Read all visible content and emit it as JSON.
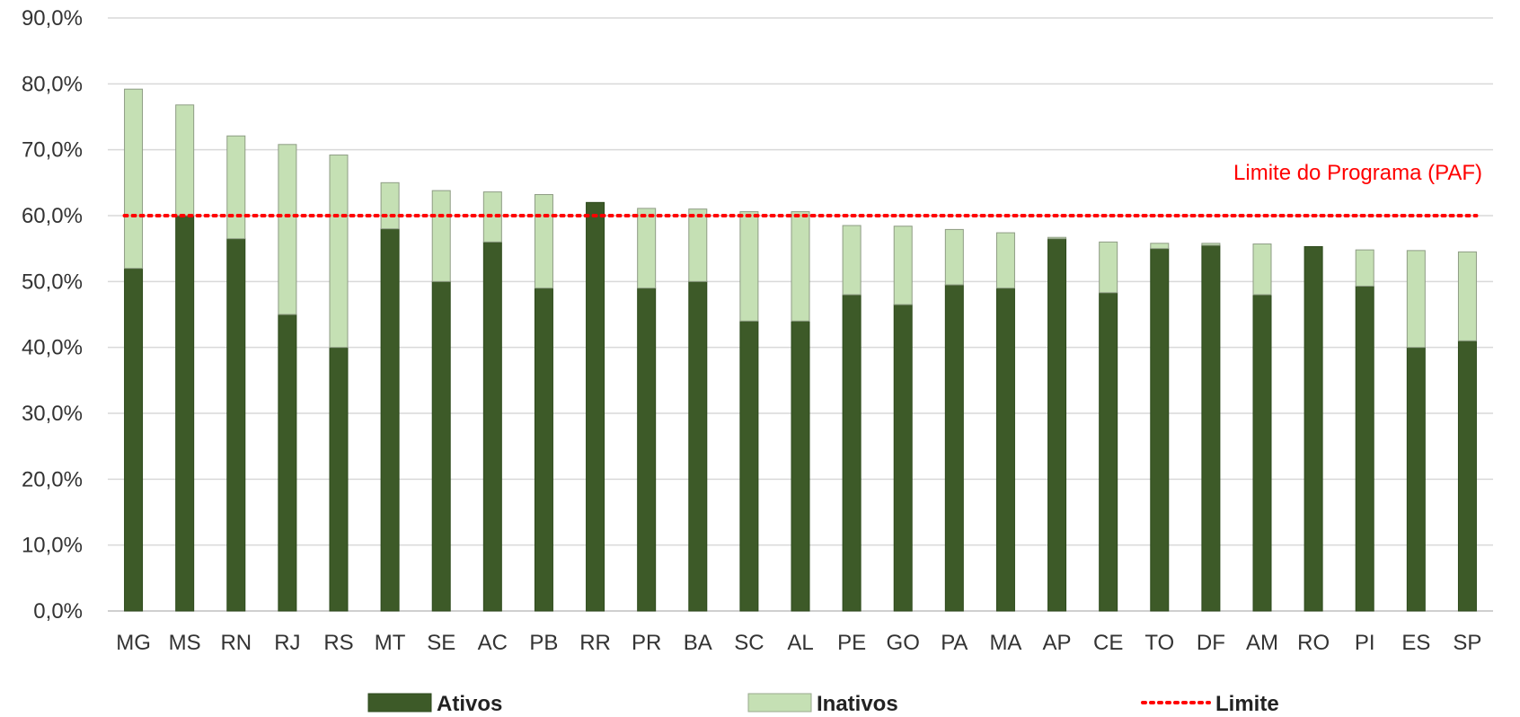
{
  "chart_data": {
    "type": "bar",
    "stacked": true,
    "categories": [
      "MG",
      "MS",
      "RN",
      "RJ",
      "RS",
      "MT",
      "SE",
      "AC",
      "PB",
      "RR",
      "PR",
      "BA",
      "SC",
      "AL",
      "PE",
      "GO",
      "PA",
      "MA",
      "AP",
      "CE",
      "TO",
      "DF",
      "AM",
      "RO",
      "PI",
      "ES",
      "SP"
    ],
    "series": [
      {
        "name": "Ativos",
        "color": "#3d5a28",
        "values": [
          52.0,
          60.0,
          56.5,
          45.0,
          40.0,
          58.0,
          50.0,
          56.0,
          49.0,
          62.0,
          49.0,
          50.0,
          44.0,
          44.0,
          48.0,
          46.5,
          49.5,
          49.0,
          56.5,
          48.3,
          55.0,
          55.5,
          48.0,
          55.3,
          49.3,
          40.0,
          41.0
        ]
      },
      {
        "name": "Inativos",
        "color": "#c5e0b4",
        "values": [
          27.2,
          16.8,
          15.6,
          25.8,
          29.2,
          7.0,
          13.8,
          7.6,
          14.2,
          0.0,
          12.1,
          11.0,
          16.6,
          16.6,
          10.5,
          11.9,
          8.4,
          8.4,
          0.2,
          7.7,
          0.8,
          0.3,
          7.7,
          0.0,
          5.5,
          14.7,
          13.5
        ]
      }
    ],
    "limit": {
      "name": "Limite",
      "value": 60.0,
      "color": "#ff0000",
      "annotation": "Limite do Programa (PAF)"
    },
    "ylim": [
      0,
      90
    ],
    "yticks": [
      "0,0%",
      "10,0%",
      "20,0%",
      "30,0%",
      "40,0%",
      "50,0%",
      "60,0%",
      "70,0%",
      "80,0%",
      "90,0%"
    ],
    "ytick_values": [
      0,
      10,
      20,
      30,
      40,
      50,
      60,
      70,
      80,
      90
    ],
    "grid": true,
    "legend": {
      "placement": "bottom",
      "items": [
        "Ativos",
        "Inativos",
        "Limite"
      ]
    },
    "title": "",
    "xlabel": "",
    "ylabel": ""
  }
}
